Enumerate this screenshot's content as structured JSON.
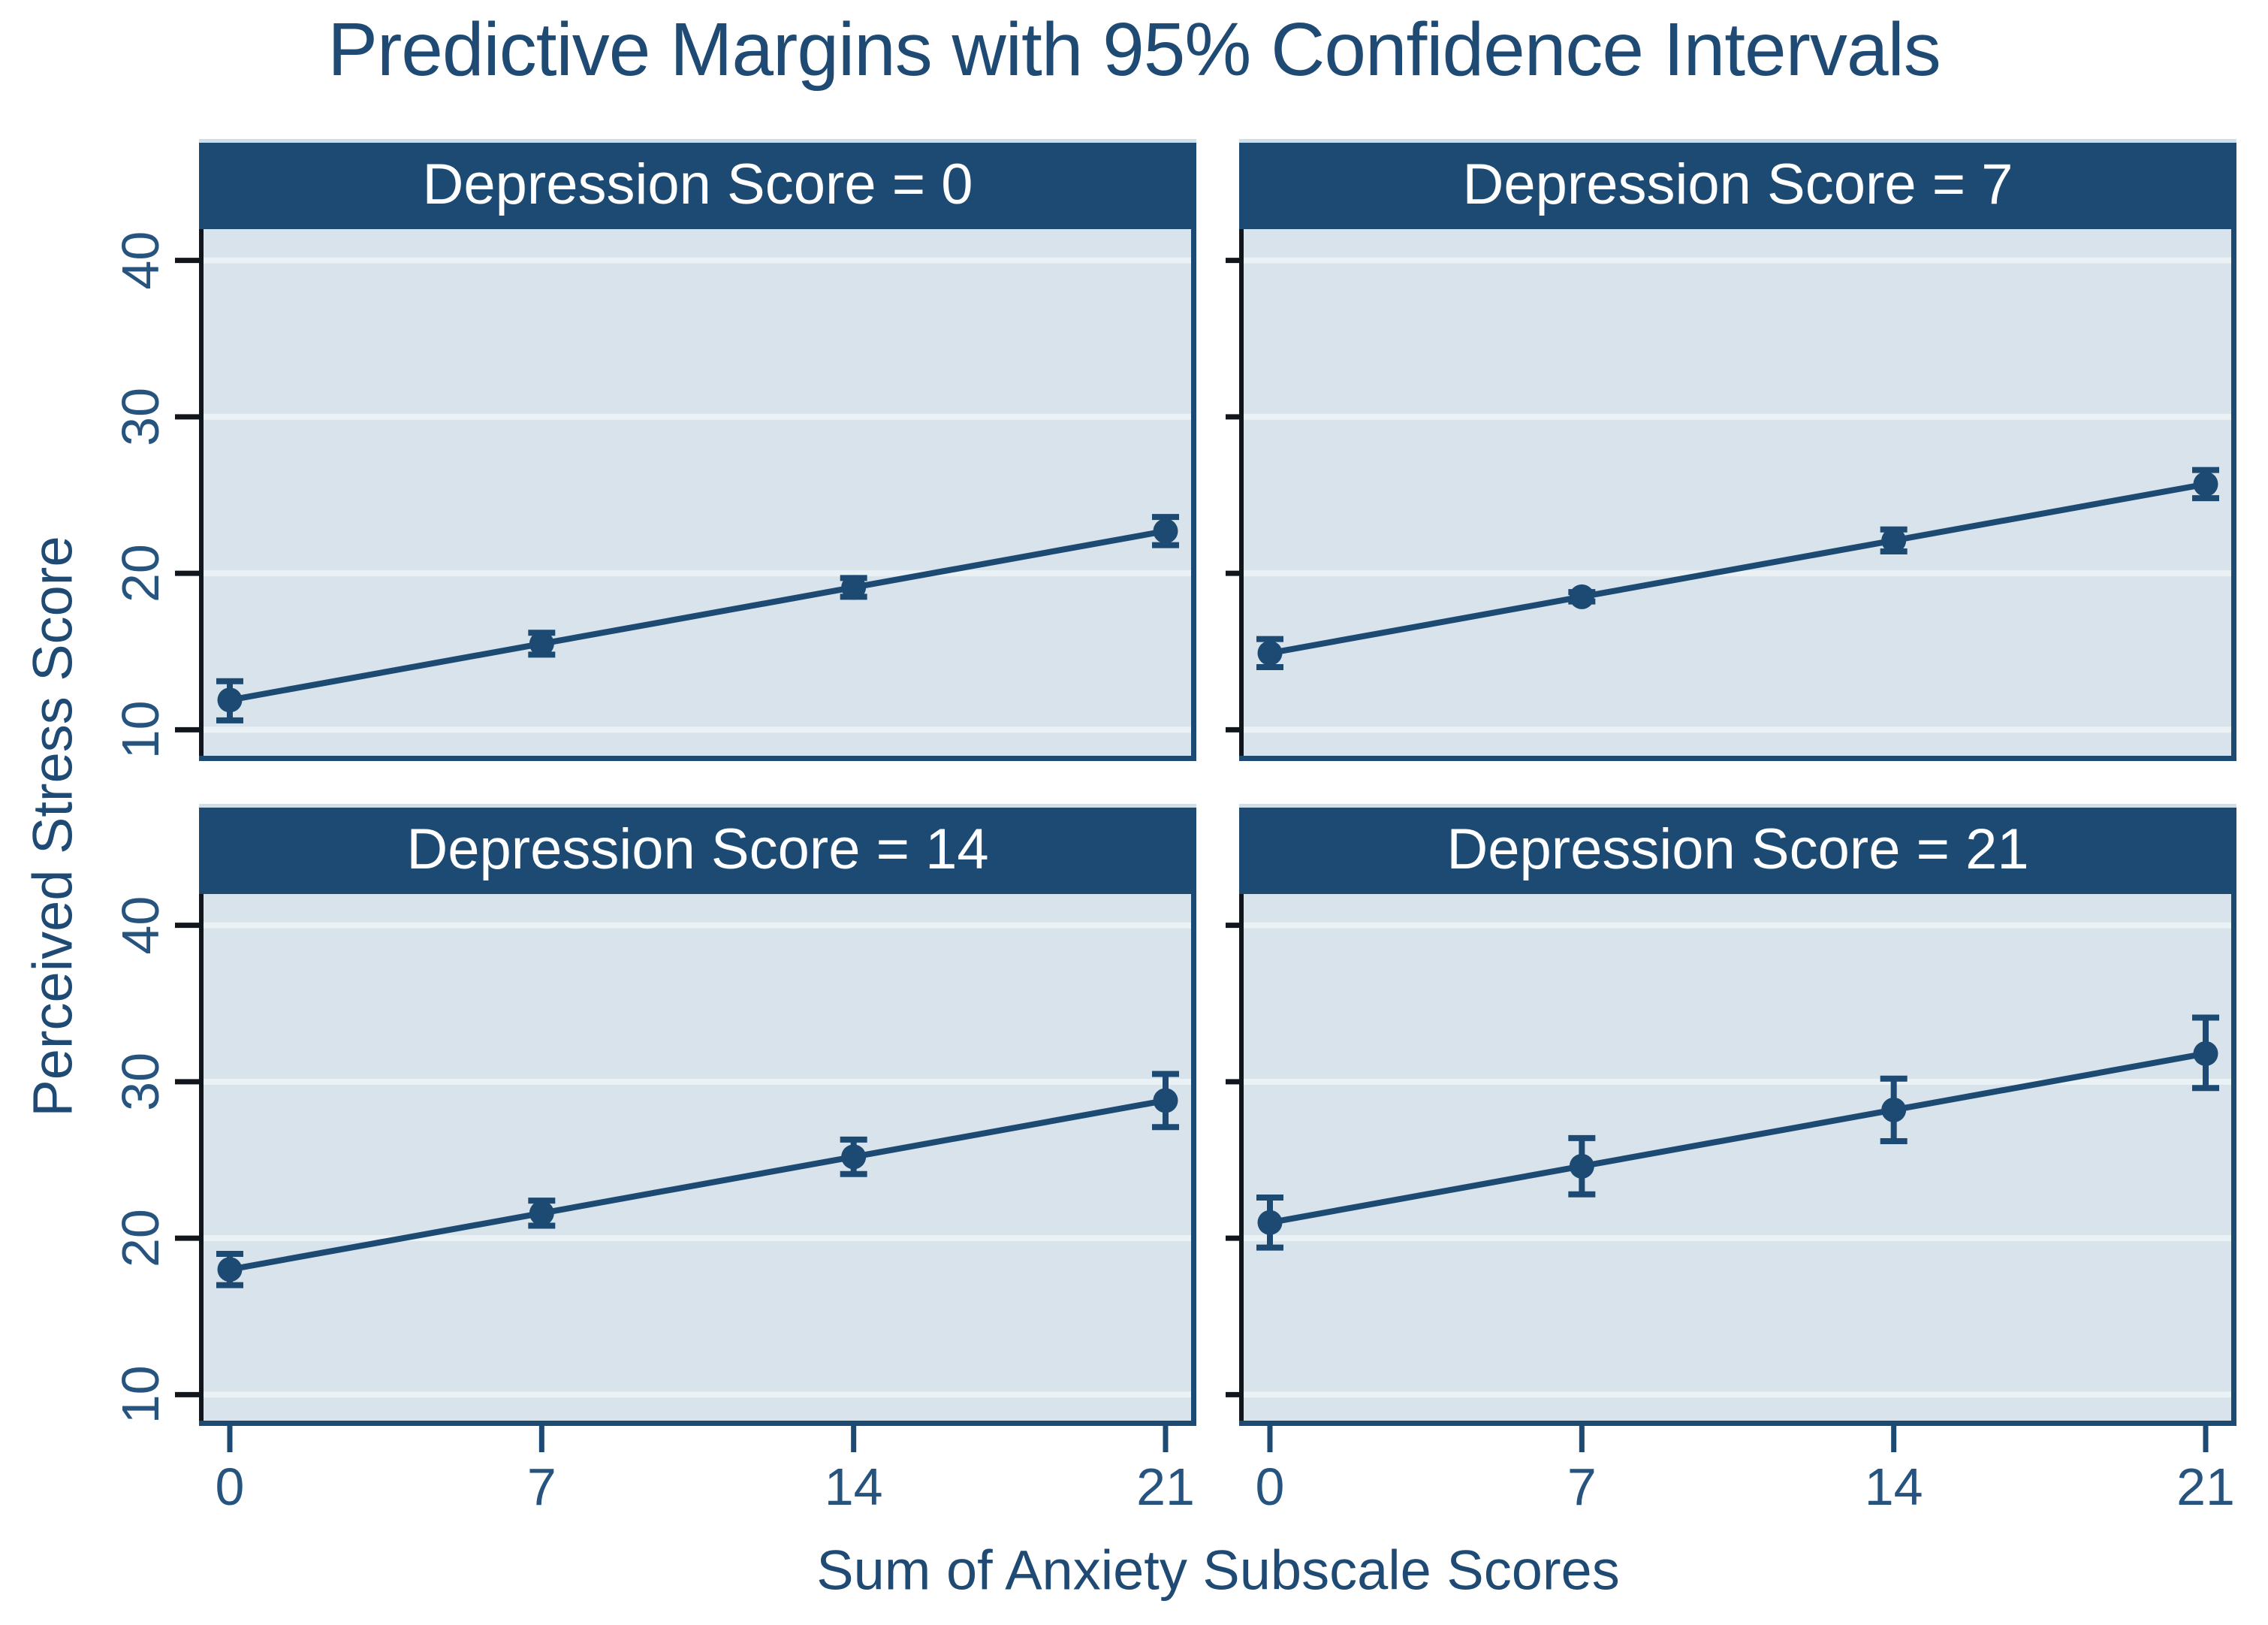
{
  "title": "Predictive Margins with 95% Confidence Intervals",
  "axes": {
    "x_label": "Sum of Anxiety Subscale Scores",
    "y_label": "Perceived Stress Score",
    "x_tick_labels": [
      "0",
      "7",
      "14",
      "21"
    ],
    "y_tick_labels": [
      "10",
      "20",
      "30",
      "40"
    ]
  },
  "colors": {
    "navy": "#1d4a72",
    "tick_text": "#26547e",
    "title_text": "#1e4a74",
    "plot_bg": "#d8e3ec",
    "gridline": "#eaf2f6",
    "axis_line": "#10161c",
    "header_text": "#ffffff",
    "header_top_edge": "#cfdfe9",
    "page_bg": "#ffffff"
  },
  "chart_data": [
    {
      "type": "line",
      "title": "Depression Score = 0",
      "x": [
        0,
        7,
        14,
        21
      ],
      "values": [
        11.9,
        15.5,
        19.1,
        22.7
      ],
      "ci_low": [
        10.6,
        14.8,
        18.5,
        21.8
      ],
      "ci_high": [
        13.1,
        16.2,
        19.7,
        23.6
      ],
      "xlabel": "Sum of Anxiety Subscale Scores",
      "ylabel": "Perceived Stress Score",
      "xlim": [
        0,
        21
      ],
      "ylim": [
        8,
        42
      ],
      "xticks": [
        0,
        7,
        14,
        21
      ],
      "yticks": [
        10,
        20,
        30,
        40
      ],
      "grid": true
    },
    {
      "type": "line",
      "title": "Depression Score = 7",
      "x": [
        0,
        7,
        14,
        21
      ],
      "values": [
        14.9,
        18.5,
        22.1,
        25.7
      ],
      "ci_low": [
        14.0,
        18.2,
        21.4,
        24.8
      ],
      "ci_high": [
        15.8,
        18.8,
        22.8,
        26.6
      ],
      "xlabel": "Sum of Anxiety Subscale Scores",
      "ylabel": "Perceived Stress Score",
      "xlim": [
        0,
        21
      ],
      "ylim": [
        8,
        42
      ],
      "xticks": [
        0,
        7,
        14,
        21
      ],
      "yticks": [
        10,
        20,
        30,
        40
      ],
      "grid": true
    },
    {
      "type": "line",
      "title": "Depression Score = 14",
      "x": [
        0,
        7,
        14,
        21
      ],
      "values": [
        18.0,
        21.6,
        25.2,
        28.8
      ],
      "ci_low": [
        17.0,
        20.8,
        24.1,
        27.1
      ],
      "ci_high": [
        19.0,
        22.4,
        26.3,
        30.5
      ],
      "xlabel": "Sum of Anxiety Subscale Scores",
      "ylabel": "Perceived Stress Score",
      "xlim": [
        0,
        21
      ],
      "ylim": [
        8,
        42
      ],
      "xticks": [
        0,
        7,
        14,
        21
      ],
      "yticks": [
        10,
        20,
        30,
        40
      ],
      "grid": true
    },
    {
      "type": "line",
      "title": "Depression Score = 21",
      "x": [
        0,
        7,
        14,
        21
      ],
      "values": [
        21.0,
        24.6,
        28.2,
        31.8
      ],
      "ci_low": [
        19.4,
        22.8,
        26.2,
        29.6
      ],
      "ci_high": [
        22.6,
        26.4,
        30.2,
        34.1
      ],
      "xlabel": "Sum of Anxiety Subscale Scores",
      "ylabel": "Perceived Stress Score",
      "xlim": [
        0,
        21
      ],
      "ylim": [
        8,
        42
      ],
      "xticks": [
        0,
        7,
        14,
        21
      ],
      "yticks": [
        10,
        20,
        30,
        40
      ],
      "grid": true
    }
  ]
}
